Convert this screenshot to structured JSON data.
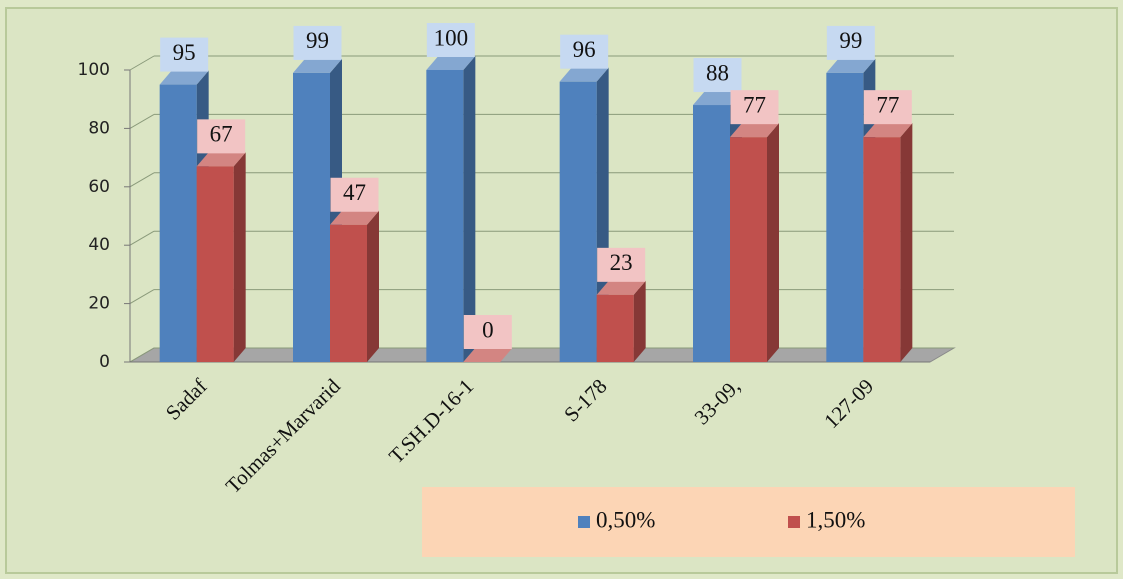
{
  "chart_data": {
    "type": "bar3d",
    "categories": [
      "Sadaf",
      "Tolmas+Marvarid",
      "T.SH.D-16-1",
      "S-178",
      "33-09,",
      "127-09"
    ],
    "series": [
      {
        "name": "0,50%",
        "color": "#4f81bd",
        "values": [
          95,
          99,
          100,
          96,
          88,
          99
        ]
      },
      {
        "name": "1,50%",
        "color": "#c0504d",
        "values": [
          67,
          47,
          0,
          23,
          77,
          77
        ]
      }
    ],
    "ylim": [
      0,
      100
    ],
    "yticks": [
      0,
      20,
      40,
      60,
      80,
      100
    ],
    "grid": true,
    "legend": "bottom"
  }
}
